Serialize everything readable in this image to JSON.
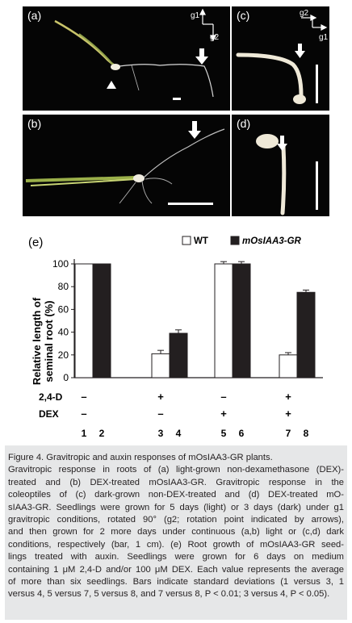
{
  "panels": {
    "a": {
      "label": "(a)",
      "g1": "g1",
      "g2": "g2"
    },
    "b": {
      "label": "(b)"
    },
    "c": {
      "label": "(c)",
      "g1": "g1",
      "g2": "g2"
    },
    "d": {
      "label": "(d)"
    }
  },
  "chart_data": {
    "type": "bar",
    "panel_label": "(e)",
    "ylabel_line1": "Relative length of",
    "ylabel_line2": "seminal root (%)",
    "ylim": [
      0,
      100
    ],
    "yticks": [
      "0",
      "20",
      "40",
      "60",
      "80",
      "100"
    ],
    "legend": [
      {
        "name": "WT",
        "color": "#ffffff"
      },
      {
        "name": "mOsIAA3-GR",
        "color": "#231f20"
      }
    ],
    "series": [
      {
        "name": "WT",
        "values": [
          100,
          21,
          100,
          20
        ],
        "errors": [
          0,
          3,
          2,
          2
        ],
        "bar_numbers": [
          "1",
          "3",
          "5",
          "7"
        ]
      },
      {
        "name": "mOsIAA3-GR",
        "values": [
          100,
          39,
          100,
          75
        ],
        "errors": [
          0,
          3,
          2,
          2
        ],
        "bar_numbers": [
          "2",
          "4",
          "6",
          "8"
        ]
      }
    ],
    "treatments": [
      {
        "name": "2,4-D",
        "values": [
          "–",
          "+",
          "–",
          "+"
        ]
      },
      {
        "name": "DEX",
        "values": [
          "–",
          "–",
          "+",
          "+"
        ]
      }
    ]
  },
  "caption": {
    "title": "Figure 4.",
    "title_text": " Gravitropic and auxin responses of mOsIAA3-GR plants.",
    "lines": [
      "Gravitropic response in roots of (a) light-grown non-dexamethasone (DEX)-",
      "treated and (b) DEX-treated mOsIAA3-GR. Gravitropic response in the",
      "coleoptiles of (c) dark-grown non-DEX-treated and (d) DEX-treated mO-",
      "sIAA3-GR. Seedlings were grown for 5 days (light) or 3 days (dark) under g1",
      "gravitropic conditions, rotated 90° (g2; rotation point indicated by arrows),",
      "and then grown for 2 more days under continuous (a,b) light or (c,d) dark",
      "conditions, respectively (bar, 1 cm). (e) Root growth of mOsIAA3-GR seed-",
      "lings treated with auxin. Seedlings were grown for 6 days on medium",
      "containing 1 μM 2,4-D and/or 100 μM DEX. Each value represents the average",
      "of more than six seedlings. Bars indicate standard deviations (1 versus 3, 1",
      "versus 4, 5 versus 7, 5 versus 8, and 7 versus 8, P < 0.01; 3 versus 4, P < 0.05)."
    ]
  }
}
